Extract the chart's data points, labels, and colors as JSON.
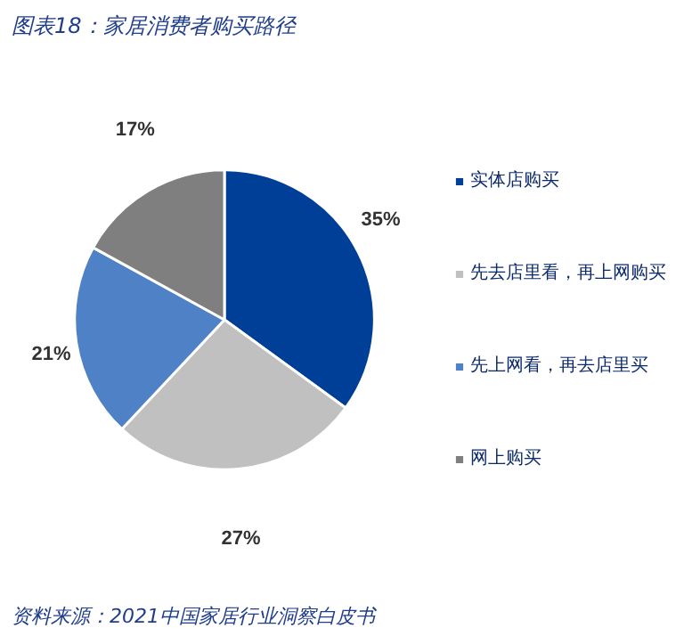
{
  "chart_data": {
    "type": "pie",
    "title": "图表18：家居消费者购买路径",
    "categories": [
      "实体店购买",
      "先去店里看，再上网购买",
      "先上网看，再去店里买",
      "网上购买"
    ],
    "values": [
      35,
      27,
      21,
      17
    ],
    "colors": [
      "#003f98",
      "#c0c0c0",
      "#4f81c7",
      "#7f7f7f"
    ],
    "value_labels": [
      "35%",
      "27%",
      "21%",
      "17%"
    ],
    "legend": "right",
    "annotations": [
      "资料来源：2021中国家居行业洞察白皮书"
    ]
  }
}
